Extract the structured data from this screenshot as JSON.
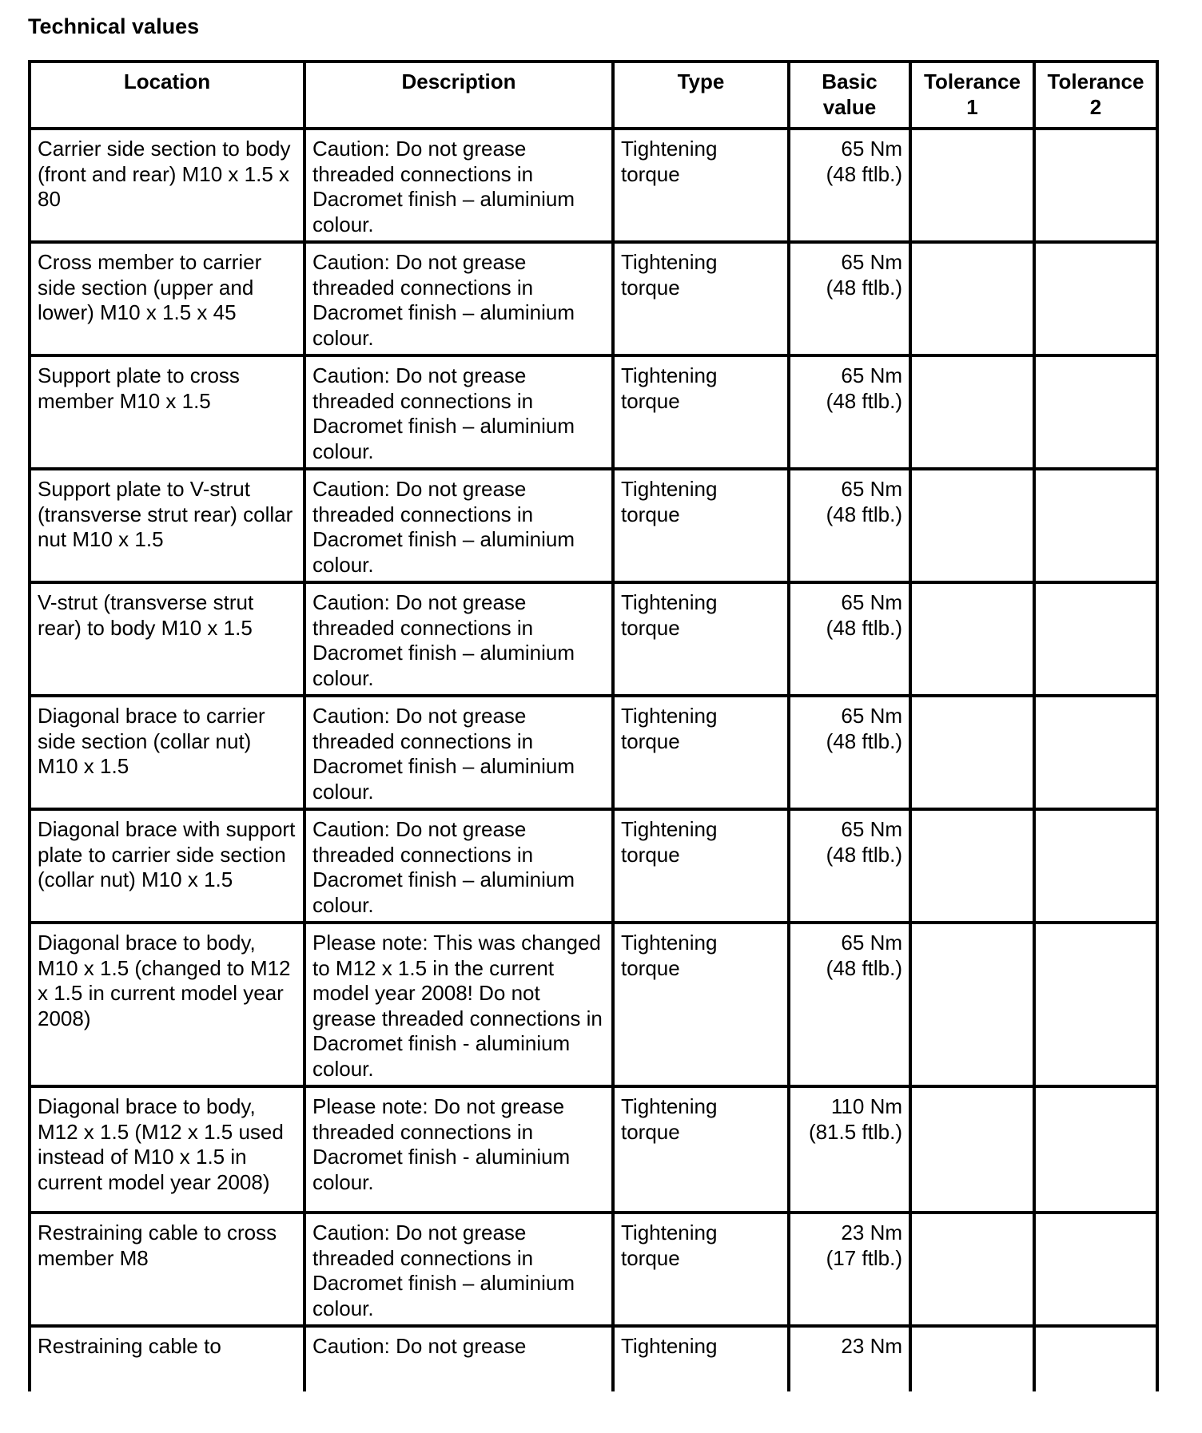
{
  "title": "Technical values",
  "columns": [
    "Location",
    "Description",
    "Type",
    "Basic value",
    "Tolerance 1",
    "Tolerance 2"
  ],
  "rows": [
    {
      "location": "Carrier side section to body (front and rear) M10 x 1.5 x 80",
      "description": "Caution: Do not grease threaded connections in Dacromet finish – aluminium colour.",
      "type": "Tightening torque",
      "basic": [
        "65 Nm",
        "(48 ftlb.)"
      ],
      "tol1": "",
      "tol2": ""
    },
    {
      "location": "Cross member to carrier side section (upper and lower) M10 x 1.5 x 45",
      "description": "Caution: Do not grease threaded connections in Dacromet finish – aluminium colour.",
      "type": "Tightening torque",
      "basic": [
        "65 Nm",
        "(48 ftlb.)"
      ],
      "tol1": "",
      "tol2": ""
    },
    {
      "location": "Support plate to cross member M10 x 1.5",
      "description": "Caution: Do not grease threaded connections in Dacromet finish – aluminium colour.",
      "type": "Tightening torque",
      "basic": [
        "65 Nm",
        "(48 ftlb.)"
      ],
      "tol1": "",
      "tol2": ""
    },
    {
      "location": "Support plate to V-strut (transverse strut rear) collar nut M10 x 1.5",
      "description": "Caution: Do not grease threaded connections in Dacromet finish – aluminium colour.",
      "type": "Tightening torque",
      "basic": [
        "65 Nm",
        "(48 ftlb.)"
      ],
      "tol1": "",
      "tol2": ""
    },
    {
      "location": "V-strut (transverse strut rear) to body M10 x 1.5",
      "description": "Caution: Do not grease threaded connections in Dacromet finish – aluminium colour.",
      "type": "Tightening torque",
      "basic": [
        "65 Nm",
        "(48 ftlb.)"
      ],
      "tol1": "",
      "tol2": ""
    },
    {
      "location": "Diagonal brace to carrier side section (collar nut) M10 x 1.5",
      "description": "Caution: Do not grease threaded connections in Dacromet finish – aluminium colour.",
      "type": "Tightening torque",
      "basic": [
        "65 Nm",
        "(48 ftlb.)"
      ],
      "tol1": "",
      "tol2": ""
    },
    {
      "location": "Diagonal brace with support plate to carrier side section (collar nut) M10 x 1.5",
      "description": "Caution: Do not grease threaded connections in Dacromet finish – aluminium colour.",
      "type": "Tightening torque",
      "basic": [
        "65 Nm",
        "(48 ftlb.)"
      ],
      "tol1": "",
      "tol2": ""
    },
    {
      "location": "Diagonal brace to body, M10 x 1.5 (changed to M12 x 1.5 in current model year 2008)",
      "description": "Please note: This was changed to M12 x 1.5 in the current model year 2008! Do not grease threaded connections in Dacromet finish - aluminium colour.",
      "type": "Tightening torque",
      "basic": [
        "65 Nm",
        "(48 ftlb.)"
      ],
      "tol1": "",
      "tol2": ""
    },
    {
      "location": "Diagonal brace to body, M12 x 1.5 (M12 x 1.5 used instead of M10 x 1.5 in current model year 2008)",
      "description": "Please note: Do not grease threaded connections in Dacromet finish - aluminium colour.",
      "type": "Tightening torque",
      "basic": [
        "110 Nm",
        "(81.5 ftlb.)"
      ],
      "tol1": "",
      "tol2": ""
    },
    {
      "location": "Restraining cable to cross member M8",
      "description": "Caution: Do not grease threaded connections in Dacromet finish – aluminium colour.",
      "type": "Tightening torque",
      "basic": [
        "23 Nm",
        "(17 ftlb.)"
      ],
      "tol1": "",
      "tol2": ""
    },
    {
      "location": "Restraining cable to",
      "description": "Caution: Do not grease",
      "type": "Tightening",
      "basic": [
        "23 Nm",
        ""
      ],
      "tol1": "",
      "tol2": ""
    }
  ]
}
